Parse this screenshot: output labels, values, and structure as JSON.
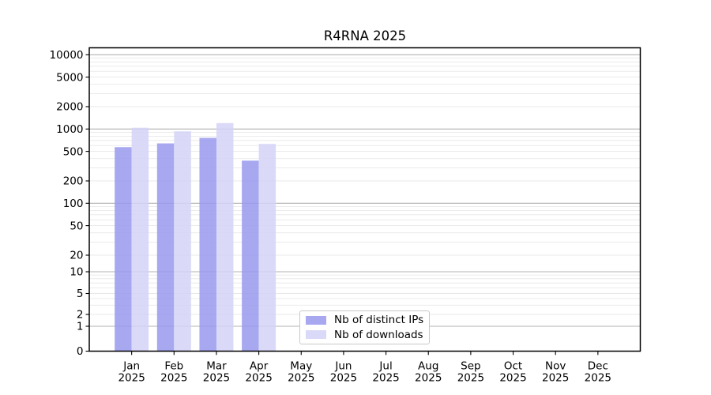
{
  "window": {
    "background": "#ffffff"
  },
  "chart_data": {
    "type": "bar",
    "title": "R4RNA 2025",
    "categories": [
      "Jan 2025",
      "Feb 2025",
      "Mar 2025",
      "Apr 2025",
      "May 2025",
      "Jun 2025",
      "Jul 2025",
      "Aug 2025",
      "Sep 2025",
      "Oct 2025",
      "Nov 2025",
      "Dec 2025"
    ],
    "series": [
      {
        "name": "Nb of distinct IPs",
        "color": "#9999ee",
        "values": [
          570,
          640,
          760,
          375,
          null,
          null,
          null,
          null,
          null,
          null,
          null,
          null
        ]
      },
      {
        "name": "Nb of downloads",
        "color": "#d4d4f7",
        "values": [
          1040,
          930,
          1200,
          630,
          null,
          null,
          null,
          null,
          null,
          null,
          null,
          null
        ]
      }
    ],
    "xlabel": "",
    "ylabel": "",
    "yscale": "symlog",
    "yticks": [
      0,
      1,
      2,
      5,
      10,
      20,
      50,
      100,
      200,
      500,
      1000,
      2000,
      5000,
      10000
    ],
    "ylim": [
      0,
      12400
    ],
    "grid": {
      "horizontal": true,
      "vertical": false,
      "major_color": "#b3b3b3",
      "minor_color": "#e8e8e8"
    },
    "bar_opacity": 0.85,
    "legend_position": "lower center, inside plot"
  },
  "legend": {
    "items": [
      {
        "label": "Nb of distinct IPs",
        "color": "#9999ee"
      },
      {
        "label": "Nb of downloads",
        "color": "#d4d4f7"
      }
    ]
  },
  "colors": {
    "spine": "#000000",
    "text": "#000000",
    "background": "#ffffff"
  }
}
